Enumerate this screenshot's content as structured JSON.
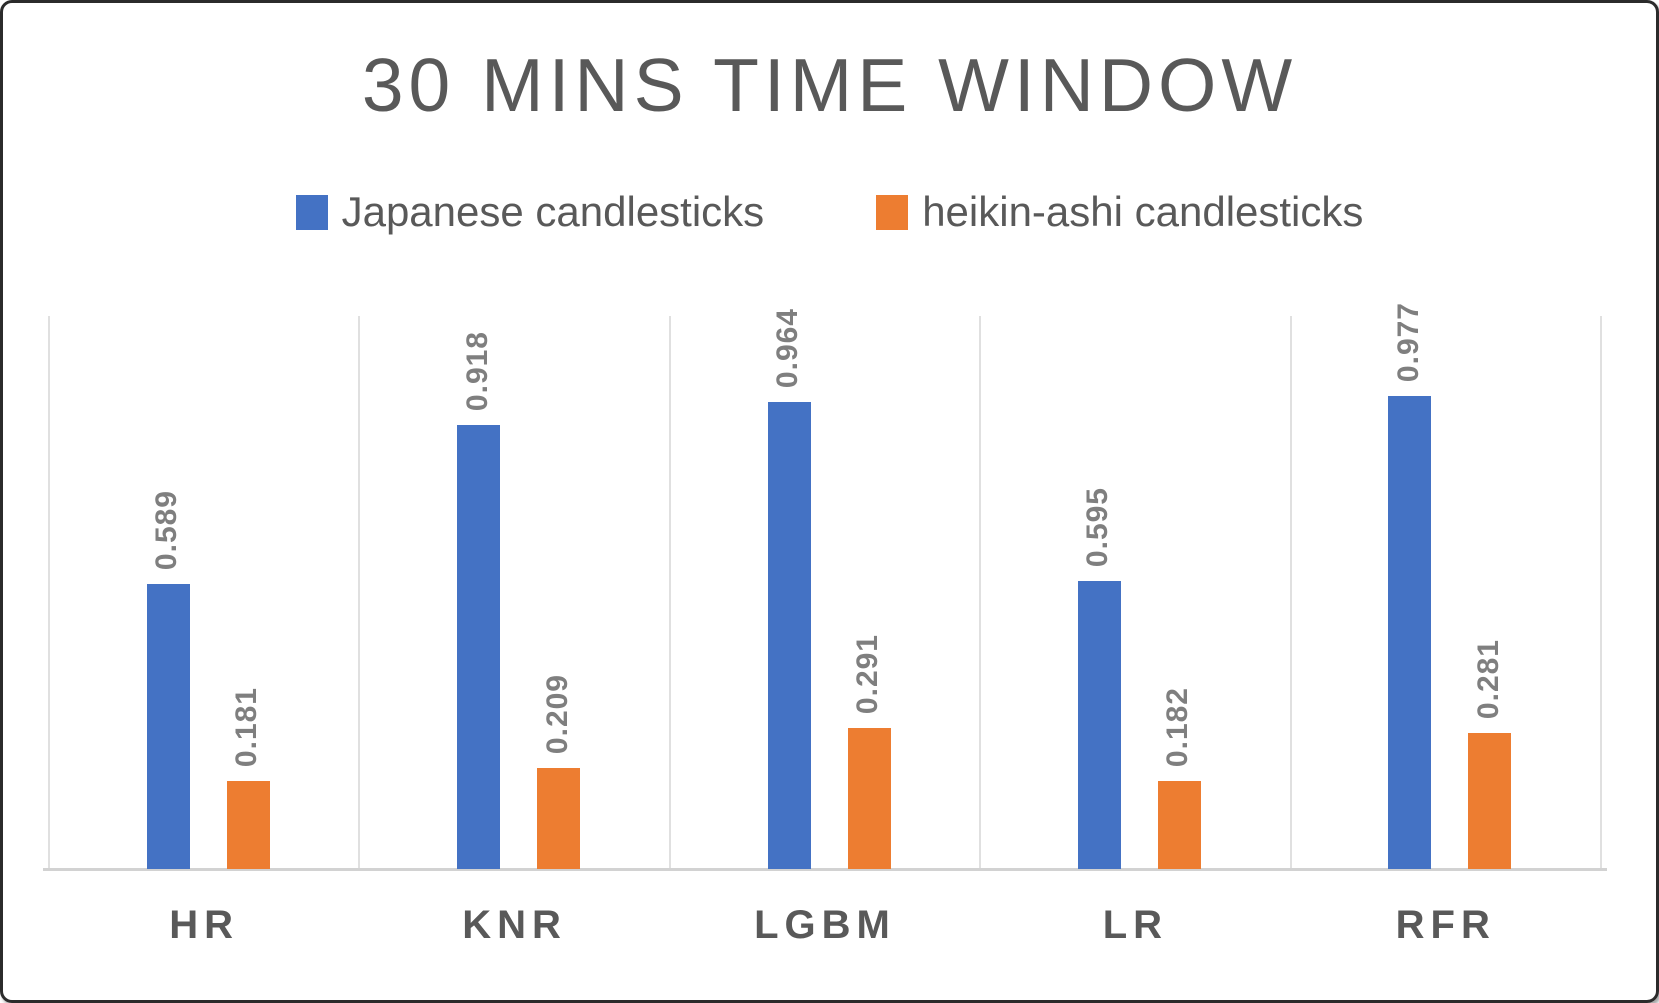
{
  "chart_data": {
    "type": "bar",
    "title": "30 MINS TIME WINDOW",
    "categories": [
      "HR",
      "KNR",
      "LGBM",
      "LR",
      "RFR"
    ],
    "series": [
      {
        "name": "Japanese candlesticks",
        "color": "#4472C4",
        "values": [
          0.589,
          0.918,
          0.964,
          0.595,
          0.977
        ]
      },
      {
        "name": "heikin-ashi candlesticks",
        "color": "#ED7D31",
        "values": [
          0.181,
          0.209,
          0.291,
          0.182,
          0.281
        ]
      }
    ],
    "xlabel": "",
    "ylabel": "",
    "ylim": [
      0,
      1.15
    ],
    "y_axis_labels_visible": false,
    "gridlines": "vertical-category-separators",
    "data_labels": "values shown above bars, 3 decimals, rotated 90 degrees",
    "legend_position": "top-center"
  },
  "colors": {
    "title_text": "#595959",
    "category_label_text": "#595959",
    "value_label_text": "#7f7f7f",
    "gridline": "#e0e0e0",
    "axis_line": "#d2d2d2",
    "frame_border": "#2b2b2b",
    "background": "#ffffff"
  }
}
